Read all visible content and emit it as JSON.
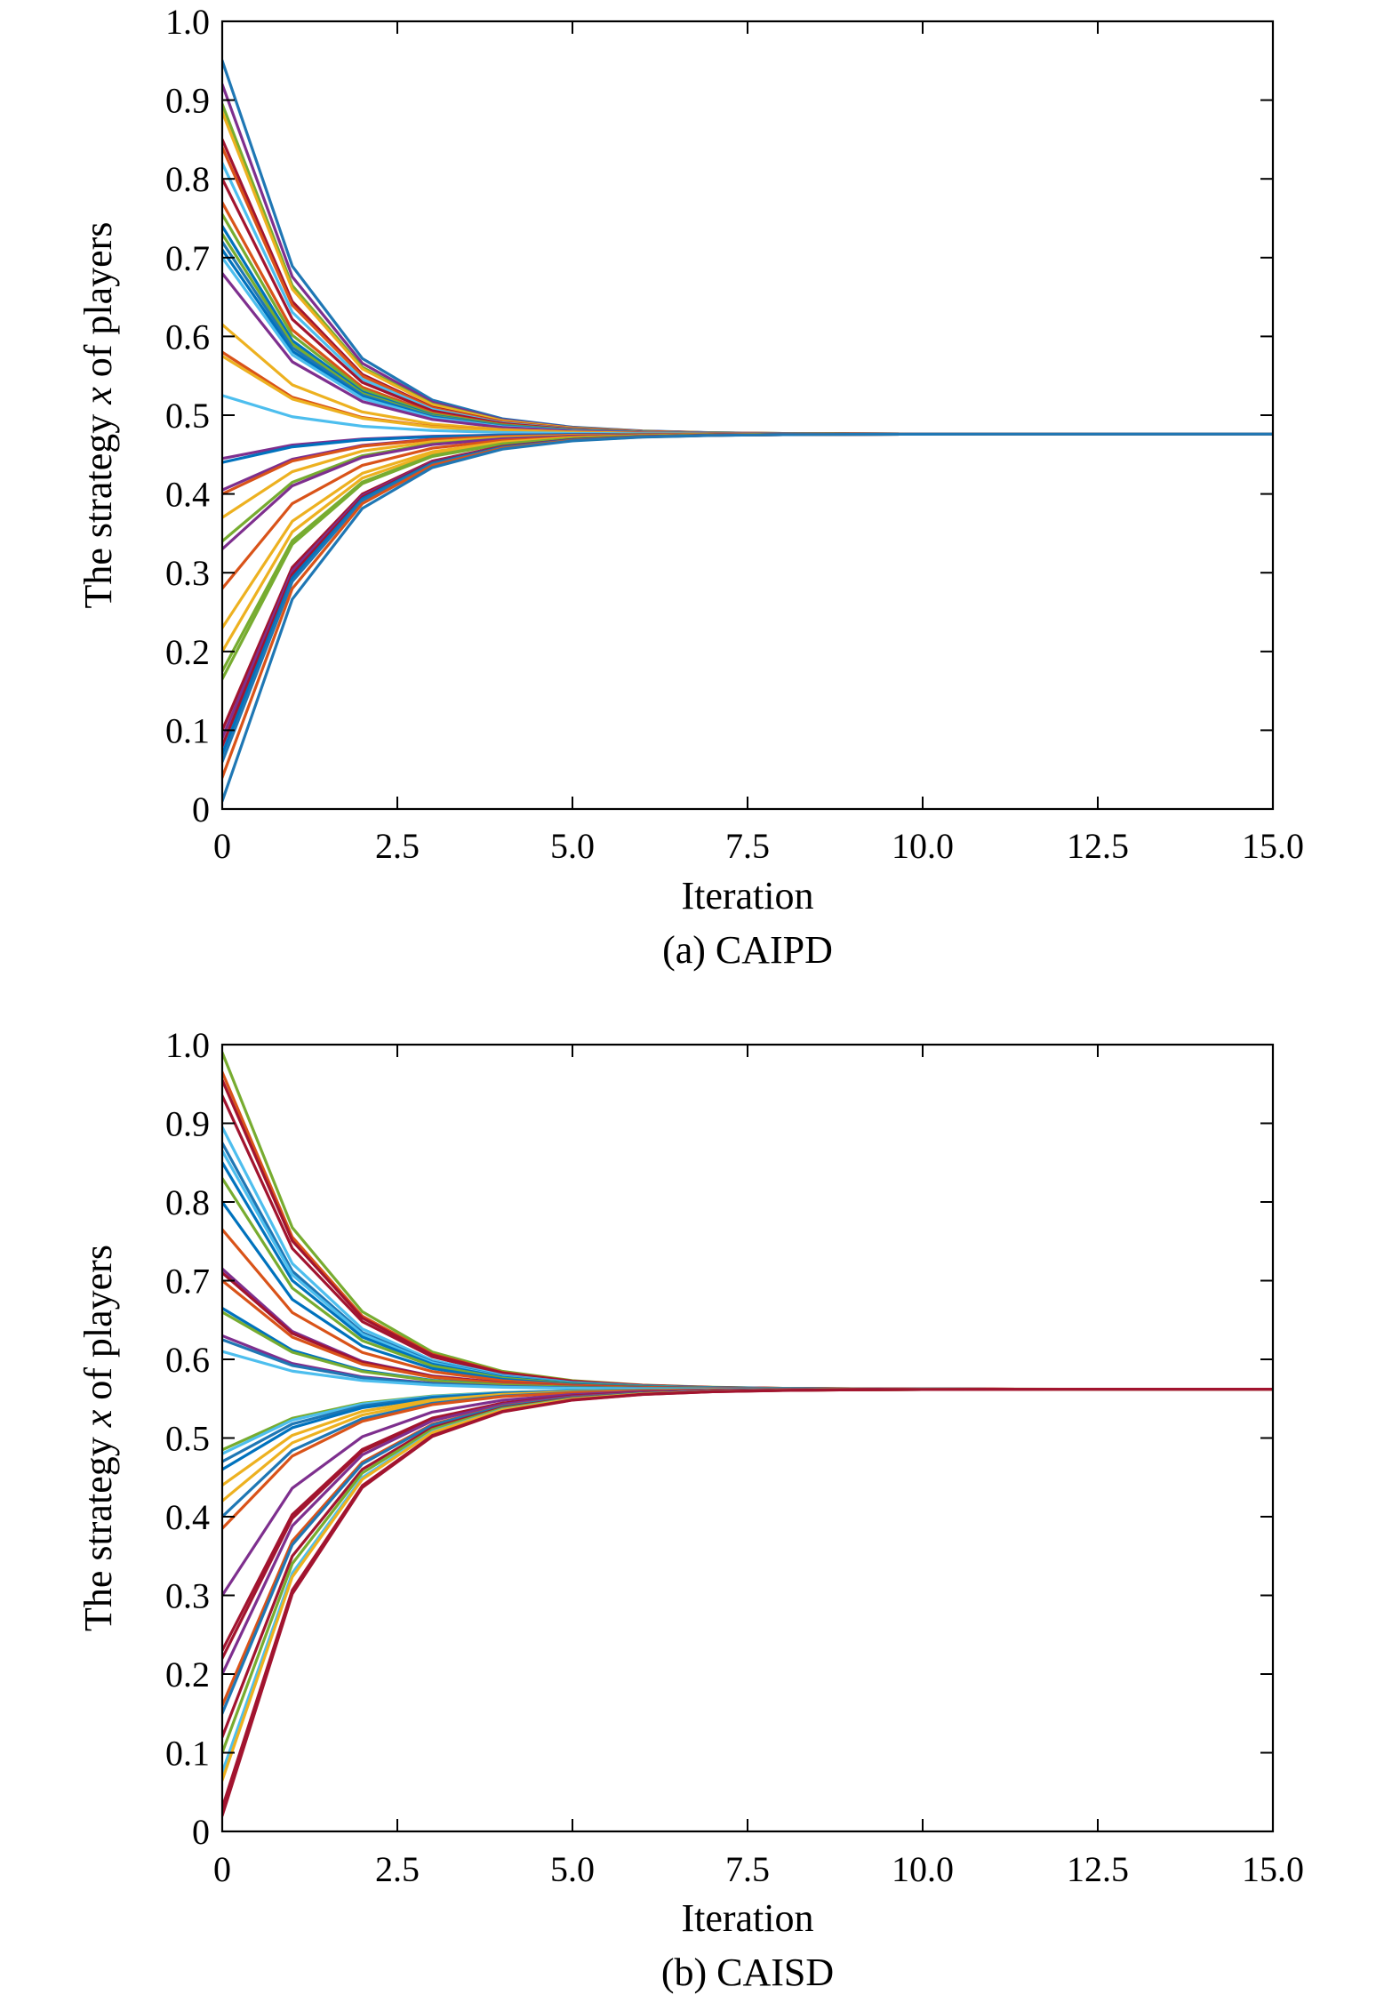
{
  "chart_data": [
    {
      "type": "line",
      "caption": "(a) CAIPD",
      "xlabel": "Iteration",
      "ylabel_parts": [
        "The strategy ",
        "x",
        " of players"
      ],
      "xlim": [
        0,
        15
      ],
      "ylim": [
        0,
        1
      ],
      "xticks": [
        0,
        2.5,
        5,
        7.5,
        10,
        12.5,
        15
      ],
      "xtick_labels": [
        "0",
        "2.5",
        "5.0",
        "7.5",
        "10.0",
        "12.5",
        "15.0"
      ],
      "yticks": [
        0,
        0.1,
        0.2,
        0.3,
        0.4,
        0.5,
        0.6,
        0.7,
        0.8,
        0.9,
        1.0
      ],
      "ytick_labels": [
        "0",
        "0.1",
        "0.2",
        "0.3",
        "0.4",
        "0.5",
        "0.6",
        "0.7",
        "0.8",
        "0.9",
        "1.0"
      ],
      "grid": false,
      "converged_value": 0.476,
      "x": [
        0,
        1,
        2,
        3,
        4,
        5,
        6,
        7,
        8,
        9,
        10,
        11,
        12,
        13,
        14,
        15
      ],
      "contraction": 0.45,
      "initial_values": [
        0.95,
        0.92,
        0.895,
        0.885,
        0.85,
        0.84,
        0.82,
        0.8,
        0.77,
        0.755,
        0.74,
        0.73,
        0.72,
        0.71,
        0.7,
        0.68,
        0.615,
        0.58,
        0.575,
        0.525,
        0.445,
        0.44,
        0.405,
        0.4,
        0.37,
        0.34,
        0.33,
        0.28,
        0.23,
        0.2,
        0.175,
        0.165,
        0.1,
        0.09,
        0.08,
        0.07,
        0.06,
        0.04,
        0.01
      ],
      "series_colors": [
        "#1f77b4",
        "#7e2f8e",
        "#77ac30",
        "#edb120",
        "#a2142f",
        "#d95319",
        "#4dbeee",
        "#a2142f",
        "#d95319",
        "#77ac30",
        "#0072bd",
        "#77ac30",
        "#1f77b4",
        "#0072bd",
        "#4dbeee",
        "#7e2f8e",
        "#edb120",
        "#d95319",
        "#edb120",
        "#4dbeee",
        "#7e2f8e",
        "#0072bd",
        "#7e2f8e",
        "#d95319",
        "#edb120",
        "#77ac30",
        "#7e2f8e",
        "#d95319",
        "#edb120",
        "#edb120",
        "#77ac30",
        "#77ac30",
        "#a2142f",
        "#7e2f8e",
        "#a2142f",
        "#0072bd",
        "#1f77b4",
        "#d95319",
        "#1f77b4"
      ]
    },
    {
      "type": "line",
      "caption": "(b) CAISD",
      "xlabel": "Iteration",
      "ylabel_parts": [
        "The strategy ",
        "x",
        " of players"
      ],
      "xlim": [
        0,
        15
      ],
      "ylim": [
        0,
        1
      ],
      "xticks": [
        0,
        2.5,
        5,
        7.5,
        10,
        12.5,
        15
      ],
      "xtick_labels": [
        "0",
        "2.5",
        "5.0",
        "7.5",
        "10.0",
        "12.5",
        "15.0"
      ],
      "yticks": [
        0,
        0.1,
        0.2,
        0.3,
        0.4,
        0.5,
        0.6,
        0.7,
        0.8,
        0.9,
        1.0
      ],
      "ytick_labels": [
        "0",
        "0.1",
        "0.2",
        "0.3",
        "0.4",
        "0.5",
        "0.6",
        "0.7",
        "0.8",
        "0.9",
        "1.0"
      ],
      "grid": false,
      "converged_value": 0.562,
      "x": [
        0,
        1,
        2,
        3,
        4,
        5,
        6,
        7,
        8,
        9,
        10,
        11,
        12,
        13,
        14,
        15
      ],
      "contraction": 0.48,
      "initial_values": [
        0.99,
        0.965,
        0.955,
        0.935,
        0.895,
        0.875,
        0.865,
        0.85,
        0.83,
        0.8,
        0.765,
        0.715,
        0.71,
        0.7,
        0.665,
        0.66,
        0.63,
        0.625,
        0.61,
        0.485,
        0.48,
        0.47,
        0.46,
        0.44,
        0.42,
        0.4,
        0.385,
        0.3,
        0.23,
        0.22,
        0.2,
        0.16,
        0.15,
        0.12,
        0.1,
        0.075,
        0.065,
        0.03,
        0.02
      ],
      "series_colors": [
        "#77ac30",
        "#d95319",
        "#a2142f",
        "#a2142f",
        "#4dbeee",
        "#1f77b4",
        "#4dbeee",
        "#0072bd",
        "#77ac30",
        "#0072bd",
        "#d95319",
        "#7e2f8e",
        "#a2142f",
        "#d95319",
        "#0072bd",
        "#77ac30",
        "#7e2f8e",
        "#1f77b4",
        "#4dbeee",
        "#77ac30",
        "#4dbeee",
        "#1f77b4",
        "#0072bd",
        "#edb120",
        "#edb120",
        "#1f77b4",
        "#d95319",
        "#7e2f8e",
        "#a2142f",
        "#a2142f",
        "#7e2f8e",
        "#d95319",
        "#1f77b4",
        "#a2142f",
        "#77ac30",
        "#4dbeee",
        "#edb120",
        "#a2142f",
        "#a2142f"
      ]
    }
  ]
}
